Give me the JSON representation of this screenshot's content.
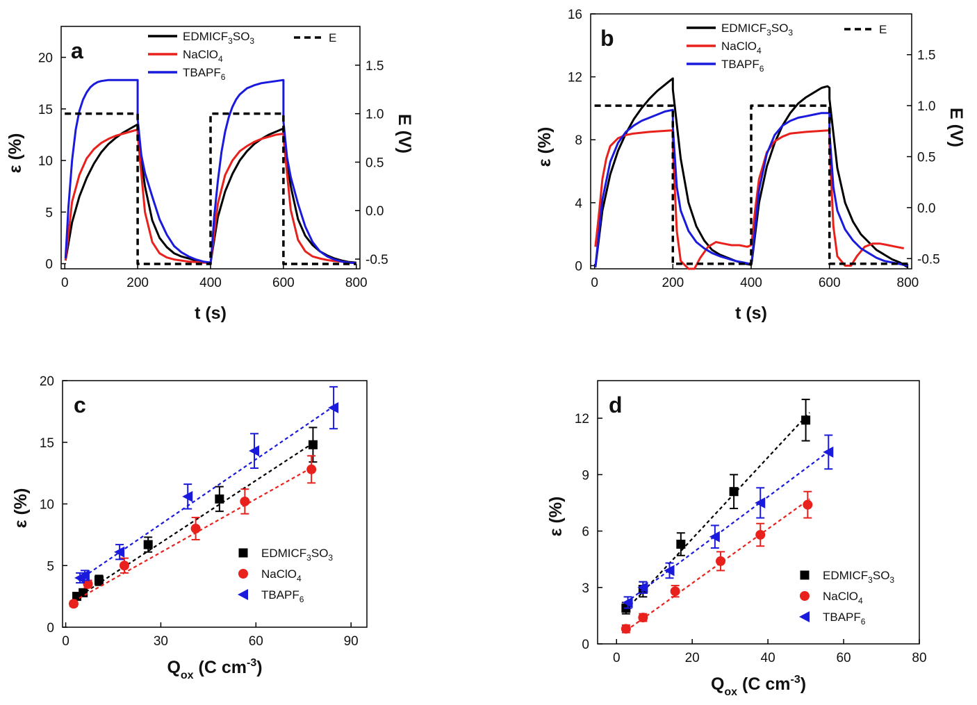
{
  "colors": {
    "EDMICF3SO3": "#000000",
    "NaClO4": "#e8211c",
    "TBAPF6": "#1a1adc",
    "E": "#000000"
  },
  "legend_labels": {
    "EDMICF3SO3": [
      "EDMICF",
      "3",
      "SO",
      "3"
    ],
    "NaClO4": [
      "NaClO",
      "4"
    ],
    "TBAPF6": [
      "TBAPF",
      "6"
    ],
    "E": "E"
  },
  "chart_data": [
    {
      "panel": "a",
      "type": "line",
      "xlabel": "t (s)",
      "ylabel": "ε (%)",
      "y2label": "E (V)",
      "xlim": [
        -10,
        810
      ],
      "ylim": [
        -0.5,
        23
      ],
      "y2lim": [
        -0.6,
        1.9
      ],
      "xticks": [
        0,
        200,
        400,
        600,
        800
      ],
      "yticks": [
        0,
        5,
        10,
        15,
        20
      ],
      "y2ticks": [
        -0.5,
        0.0,
        0.5,
        1.0,
        1.5
      ],
      "y2ticklabels": [
        "-0.5",
        "0.0",
        "0.5",
        "1.0",
        "1.5"
      ],
      "legend_position": "top",
      "series": [
        {
          "name": "EDMICF3SO3",
          "x": [
            2,
            20,
            40,
            60,
            80,
            100,
            120,
            140,
            160,
            180,
            200,
            200,
            220,
            240,
            260,
            280,
            300,
            320,
            340,
            360,
            380,
            400,
            402,
            420,
            440,
            460,
            480,
            500,
            520,
            540,
            560,
            580,
            600,
            600,
            620,
            640,
            660,
            680,
            700,
            720,
            740,
            760,
            780,
            800
          ],
          "y": [
            0.3,
            4.0,
            6.5,
            8.3,
            9.7,
            10.8,
            11.6,
            12.2,
            12.7,
            13.1,
            13.5,
            12.8,
            7.5,
            4.2,
            2.5,
            1.6,
            1.0,
            0.7,
            0.5,
            0.3,
            0.15,
            0.1,
            0.5,
            4.5,
            7.0,
            8.7,
            10.0,
            10.9,
            11.6,
            12.1,
            12.5,
            12.8,
            13.1,
            12.6,
            7.5,
            4.3,
            2.7,
            1.8,
            1.2,
            0.8,
            0.5,
            0.3,
            0.15,
            0.1
          ]
        },
        {
          "name": "NaClO4",
          "x": [
            2,
            20,
            40,
            60,
            80,
            100,
            120,
            140,
            160,
            180,
            200,
            200,
            220,
            240,
            260,
            280,
            300,
            320,
            340,
            360,
            380,
            400,
            402,
            420,
            440,
            460,
            480,
            500,
            520,
            540,
            560,
            580,
            600,
            600,
            620,
            640,
            660,
            680,
            700,
            720,
            740,
            760,
            780,
            800
          ],
          "y": [
            0.3,
            6.0,
            8.6,
            10.2,
            11.1,
            11.7,
            12.1,
            12.4,
            12.6,
            12.8,
            13.0,
            12.5,
            5.0,
            2.1,
            1.0,
            0.6,
            0.4,
            0.3,
            0.2,
            0.15,
            0.1,
            0.1,
            0.5,
            5.8,
            8.6,
            10.0,
            10.9,
            11.4,
            11.8,
            12.1,
            12.3,
            12.5,
            12.6,
            12.2,
            5.2,
            2.3,
            1.2,
            0.7,
            0.5,
            0.35,
            0.25,
            0.2,
            0.1,
            0.05
          ]
        },
        {
          "name": "TBAPF6",
          "x": [
            2,
            10,
            20,
            30,
            40,
            50,
            60,
            70,
            80,
            90,
            100,
            120,
            140,
            160,
            180,
            200,
            200,
            210,
            220,
            240,
            260,
            280,
            300,
            320,
            340,
            360,
            380,
            400,
            402,
            410,
            420,
            430,
            440,
            450,
            460,
            470,
            480,
            500,
            520,
            540,
            560,
            580,
            600,
            600,
            610,
            620,
            640,
            660,
            680,
            700,
            720,
            740,
            760,
            780,
            800
          ],
          "y": [
            0.5,
            5.5,
            10.0,
            13.0,
            14.8,
            15.9,
            16.6,
            17.1,
            17.4,
            17.6,
            17.7,
            17.8,
            17.8,
            17.8,
            17.8,
            17.8,
            14.0,
            10.5,
            8.8,
            6.5,
            4.3,
            2.8,
            1.7,
            1.1,
            0.7,
            0.4,
            0.2,
            0.1,
            0.5,
            4.5,
            8.0,
            10.8,
            12.8,
            14.2,
            15.2,
            15.9,
            16.4,
            17.0,
            17.3,
            17.5,
            17.6,
            17.7,
            17.8,
            13.8,
            10.3,
            8.4,
            5.8,
            3.6,
            2.1,
            1.2,
            0.7,
            0.4,
            0.2,
            0.1,
            0.05
          ]
        },
        {
          "name": "E",
          "style": "dashed",
          "axis": "right",
          "x": [
            0,
            200,
            200,
            400,
            400,
            600,
            600,
            800
          ],
          "y": [
            1.0,
            1.0,
            -0.55,
            -0.55,
            1.0,
            1.0,
            -0.55,
            -0.55
          ]
        }
      ]
    },
    {
      "panel": "b",
      "type": "line",
      "xlabel": "t (s)",
      "ylabel": "ε (%)",
      "y2label": "E (V)",
      "xlim": [
        -10,
        810
      ],
      "ylim": [
        -0.2,
        16
      ],
      "y2lim": [
        -0.6,
        1.9
      ],
      "xticks": [
        0,
        200,
        400,
        600,
        800
      ],
      "yticks": [
        0,
        4,
        8,
        12,
        16
      ],
      "y2ticks": [
        -0.5,
        0.0,
        0.5,
        1.0,
        1.5
      ],
      "y2ticklabels": [
        "-0.5",
        "0.0",
        "0.5",
        "1.0",
        "1.5"
      ],
      "legend_position": "top",
      "series": [
        {
          "name": "EDMICF3SO3",
          "x": [
            2,
            20,
            40,
            60,
            80,
            100,
            120,
            140,
            160,
            180,
            195,
            200,
            200,
            220,
            240,
            260,
            280,
            300,
            320,
            340,
            360,
            380,
            400,
            402,
            420,
            440,
            460,
            480,
            500,
            520,
            540,
            560,
            580,
            595,
            600,
            600,
            620,
            640,
            660,
            680,
            700,
            720,
            740,
            760,
            780,
            800
          ],
          "y": [
            -0.1,
            3.5,
            5.8,
            7.3,
            8.4,
            9.3,
            10.0,
            10.6,
            11.1,
            11.5,
            11.8,
            11.9,
            11.2,
            6.8,
            4.0,
            2.5,
            1.6,
            1.0,
            0.7,
            0.5,
            0.3,
            0.15,
            0.05,
            0.3,
            4.0,
            6.3,
            7.8,
            8.9,
            9.7,
            10.3,
            10.7,
            11.0,
            11.3,
            11.4,
            11.3,
            10.6,
            6.2,
            4.0,
            2.8,
            2.0,
            1.5,
            1.0,
            0.7,
            0.4,
            0.2,
            -0.1
          ]
        },
        {
          "name": "NaClO4",
          "x": [
            2,
            10,
            20,
            30,
            40,
            60,
            80,
            100,
            140,
            200,
            200,
            210,
            220,
            240,
            255,
            270,
            290,
            310,
            330,
            350,
            370,
            390,
            400,
            402,
            410,
            420,
            440,
            460,
            480,
            500,
            540,
            600,
            600,
            610,
            620,
            640,
            655,
            670,
            690,
            710,
            730,
            750,
            770,
            790
          ],
          "y": [
            1.2,
            3.0,
            5.5,
            6.8,
            7.6,
            8.1,
            8.3,
            8.4,
            8.5,
            8.6,
            7.5,
            2.2,
            0.3,
            -0.2,
            -0.2,
            0.5,
            1.2,
            1.5,
            1.4,
            1.3,
            1.3,
            1.2,
            1.3,
            1.6,
            3.5,
            5.5,
            7.2,
            7.9,
            8.2,
            8.4,
            8.5,
            8.6,
            7.8,
            2.5,
            0.6,
            0.0,
            0.0,
            0.6,
            1.2,
            1.4,
            1.4,
            1.3,
            1.2,
            1.1
          ]
        },
        {
          "name": "TBAPF6",
          "x": [
            2,
            20,
            40,
            60,
            80,
            100,
            120,
            140,
            160,
            180,
            200,
            200,
            210,
            220,
            240,
            260,
            280,
            300,
            320,
            340,
            360,
            380,
            400,
            402,
            420,
            440,
            460,
            480,
            500,
            520,
            540,
            560,
            580,
            600,
            600,
            610,
            620,
            640,
            660,
            680,
            700,
            720,
            740,
            760,
            780,
            800
          ],
          "y": [
            -0.1,
            4.2,
            6.6,
            7.8,
            8.5,
            8.9,
            9.2,
            9.4,
            9.6,
            9.8,
            9.9,
            8.8,
            5.0,
            3.5,
            2.2,
            1.5,
            1.1,
            0.8,
            0.6,
            0.45,
            0.3,
            0.2,
            0.1,
            0.4,
            4.8,
            7.1,
            8.3,
            8.9,
            9.2,
            9.4,
            9.5,
            9.6,
            9.7,
            9.7,
            8.5,
            5.0,
            3.5,
            2.3,
            1.6,
            1.1,
            0.8,
            0.5,
            0.3,
            0.2,
            0.1,
            0.0
          ]
        },
        {
          "name": "E",
          "style": "dashed",
          "axis": "right",
          "x": [
            0,
            200,
            200,
            400,
            400,
            600,
            600,
            800
          ],
          "y": [
            1.0,
            1.0,
            -0.55,
            -0.55,
            1.0,
            1.0,
            -0.55,
            -0.55
          ]
        }
      ]
    },
    {
      "panel": "c",
      "type": "scatter",
      "xlabel": "Q",
      "xlabel_sub": "ox",
      "xlabel_rest": " (C cm",
      "xlabel_sup": "-3",
      "xlabel_end": ")",
      "ylabel": "ε (%)",
      "xlim": [
        -1,
        95
      ],
      "ylim": [
        0,
        20
      ],
      "xticks": [
        0,
        30,
        60,
        90
      ],
      "yticks": [
        0,
        5,
        10,
        15,
        20
      ],
      "legend_position": "lower-right",
      "series": [
        {
          "name": "EDMICF3SO3",
          "marker": "square",
          "x": [
            3.5,
            5.5,
            10.5,
            26,
            48.5,
            78
          ],
          "y": [
            2.5,
            2.8,
            3.8,
            6.7,
            10.4,
            14.8
          ],
          "err": [
            0.3,
            0.3,
            0.4,
            0.6,
            1.0,
            1.4
          ],
          "fit": [
            [
              3,
              2.3
            ],
            [
              79,
              15.1
            ]
          ]
        },
        {
          "name": "NaClO4",
          "marker": "circle",
          "x": [
            2.5,
            7,
            18.5,
            41,
            56.5,
            77.5
          ],
          "y": [
            1.9,
            3.5,
            5.0,
            8.0,
            10.2,
            12.8
          ],
          "err": [
            0.2,
            0.3,
            0.6,
            0.9,
            1.0,
            1.1
          ],
          "fit": [
            [
              2.5,
              2.1
            ],
            [
              78,
              13.0
            ]
          ]
        },
        {
          "name": "TBAPF6",
          "marker": "triangle-left",
          "x": [
            4.5,
            6,
            17,
            38.5,
            59.5,
            84.5
          ],
          "y": [
            4.0,
            4.2,
            6.1,
            10.6,
            14.3,
            17.8
          ],
          "err": [
            0.4,
            0.4,
            0.6,
            1.0,
            1.4,
            1.7
          ],
          "fit": [
            [
              4,
              3.8
            ],
            [
              85,
              18.0
            ]
          ]
        }
      ]
    },
    {
      "panel": "d",
      "type": "scatter",
      "xlabel": "Q",
      "xlabel_sub": "ox",
      "xlabel_rest": " (C cm",
      "xlabel_sup": "-3",
      "xlabel_end": ")",
      "ylabel": "ε (%)",
      "xlim": [
        -5,
        80
      ],
      "ylim": [
        0,
        14
      ],
      "xticks": [
        0,
        20,
        40,
        60,
        80
      ],
      "yticks": [
        0,
        3,
        6,
        9,
        12
      ],
      "legend_position": "lower-right",
      "series": [
        {
          "name": "EDMICF3SO3",
          "marker": "square",
          "x": [
            2.5,
            7,
            17,
            31,
            50
          ],
          "y": [
            1.9,
            2.9,
            5.3,
            8.1,
            11.9
          ],
          "err": [
            0.3,
            0.4,
            0.6,
            0.9,
            1.1
          ],
          "fit": [
            [
              2.5,
              1.8
            ],
            [
              51,
              12.3
            ]
          ]
        },
        {
          "name": "NaClO4",
          "marker": "circle",
          "x": [
            2.5,
            7,
            15.5,
            27.5,
            38,
            50.5
          ],
          "y": [
            0.8,
            1.4,
            2.8,
            4.4,
            5.8,
            7.4
          ],
          "err": [
            0.2,
            0.2,
            0.3,
            0.5,
            0.6,
            0.7
          ],
          "fit": [
            [
              2.5,
              0.7
            ],
            [
              51,
              7.7
            ]
          ]
        },
        {
          "name": "TBAPF6",
          "marker": "triangle-left",
          "x": [
            3,
            7,
            14,
            26,
            38,
            56
          ],
          "y": [
            2.2,
            3.0,
            3.9,
            5.7,
            7.5,
            10.2
          ],
          "err": [
            0.3,
            0.3,
            0.4,
            0.6,
            0.8,
            0.9
          ],
          "fit": [
            [
              2.5,
              2.2
            ],
            [
              56.5,
              10.3
            ]
          ]
        }
      ]
    }
  ]
}
